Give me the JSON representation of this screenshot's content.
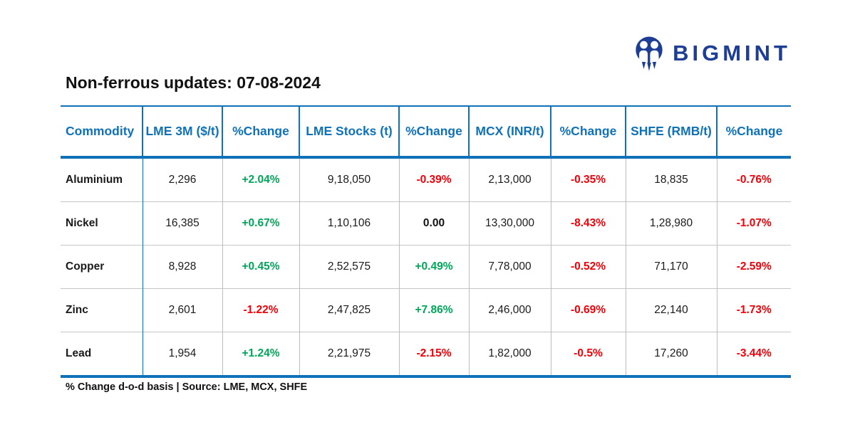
{
  "brand": {
    "name": "BIGMINT"
  },
  "title": "Non-ferrous updates: 07-08-2024",
  "footnote": "% Change d-o-d basis | Source: LME, MCX, SHFE",
  "colors": {
    "header_blue": "#0f72b9",
    "positive_green": "#00a65a",
    "negative_red": "#f40008",
    "logo_navy": "#1d3e94"
  },
  "chart_data": {
    "type": "table",
    "title": "Non-ferrous updates: 07-08-2024",
    "columns": [
      "Commodity",
      "LME 3M ($/t)",
      "%Change",
      "LME Stocks (t)",
      "%Change",
      "MCX (INR/t)",
      "%Change",
      "SHFE (RMB/t)",
      "%Change"
    ],
    "rows": [
      {
        "commodity": "Aluminium",
        "lme_3m": "2,296",
        "lme_3m_change": "+2.04%",
        "lme_stocks": "9,18,050",
        "lme_stocks_change": "-0.39%",
        "mcx": "2,13,000",
        "mcx_change": "-0.35%",
        "shfe": "18,835",
        "shfe_change": "-0.76%"
      },
      {
        "commodity": "Nickel",
        "lme_3m": "16,385",
        "lme_3m_change": "+0.67%",
        "lme_stocks": "1,10,106",
        "lme_stocks_change": "0.00",
        "mcx": "13,30,000",
        "mcx_change": "-8.43%",
        "shfe": "1,28,980",
        "shfe_change": "-1.07%"
      },
      {
        "commodity": "Copper",
        "lme_3m": "8,928",
        "lme_3m_change": "+0.45%",
        "lme_stocks": "2,52,575",
        "lme_stocks_change": "+0.49%",
        "mcx": "7,78,000",
        "mcx_change": "-0.52%",
        "shfe": "71,170",
        "shfe_change": "-2.59%"
      },
      {
        "commodity": "Zinc",
        "lme_3m": "2,601",
        "lme_3m_change": "-1.22%",
        "lme_stocks": "2,47,825",
        "lme_stocks_change": "+7.86%",
        "mcx": "2,46,000",
        "mcx_change": "-0.69%",
        "shfe": "22,140",
        "shfe_change": "-1.73%"
      },
      {
        "commodity": "Lead",
        "lme_3m": "1,954",
        "lme_3m_change": "+1.24%",
        "lme_stocks": "2,21,975",
        "lme_stocks_change": "-2.15%",
        "mcx": "1,82,000",
        "mcx_change": "-0.5%",
        "shfe": "17,260",
        "shfe_change": "-3.44%"
      }
    ]
  }
}
